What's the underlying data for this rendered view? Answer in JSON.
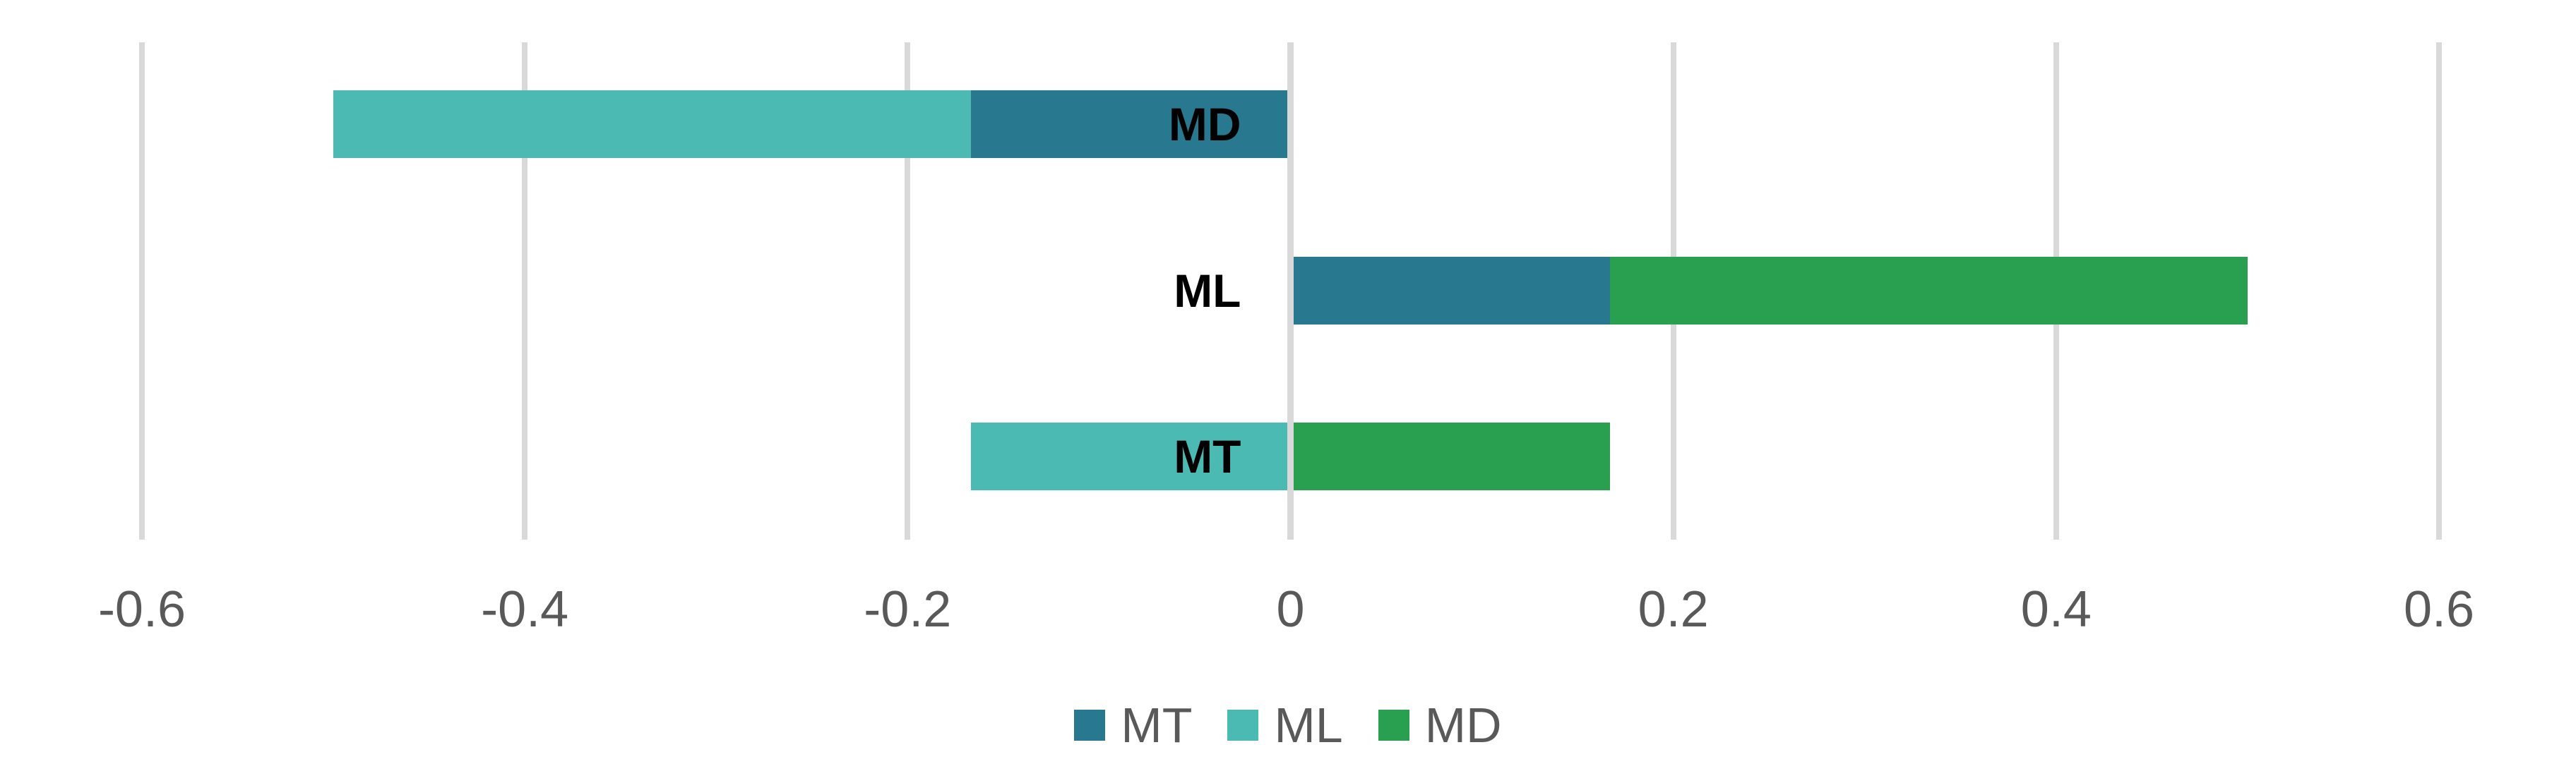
{
  "chart_data": {
    "type": "bar",
    "orientation": "horizontal",
    "stacked": true,
    "title": "",
    "xlabel": "",
    "ylabel": "",
    "categories": [
      "MD",
      "ML",
      "MT"
    ],
    "series": [
      {
        "name": "MT",
        "color": "#28798F",
        "values": [
          -0.167,
          0.167,
          0
        ]
      },
      {
        "name": "ML",
        "color": "#4ABAB3",
        "values": [
          -0.333,
          0,
          -0.167
        ]
      },
      {
        "name": "MD",
        "color": "#28A050",
        "values": [
          0,
          0.333,
          0.167
        ]
      }
    ],
    "xlim": [
      -0.6,
      0.6
    ],
    "xticks": [
      -0.6,
      -0.4,
      -0.2,
      0,
      0.2,
      0.4,
      0.6
    ],
    "xtick_labels": [
      "-0.6",
      "-0.4",
      "-0.2",
      "0",
      "0.2",
      "0.4",
      "0.6"
    ],
    "grid": true,
    "legend": {
      "position": "bottom",
      "entries": [
        {
          "label": "MT",
          "color": "#28798F"
        },
        {
          "label": "ML",
          "color": "#4ABAB3"
        },
        {
          "label": "MD",
          "color": "#28A050"
        }
      ]
    },
    "colors": {
      "background": "#FFFFFF",
      "gridline": "#D9D9D9",
      "zero_axis": "#D9D9D9",
      "tick_text": "#595959",
      "legend_text": "#595959",
      "category_label_text": "#000000"
    }
  }
}
